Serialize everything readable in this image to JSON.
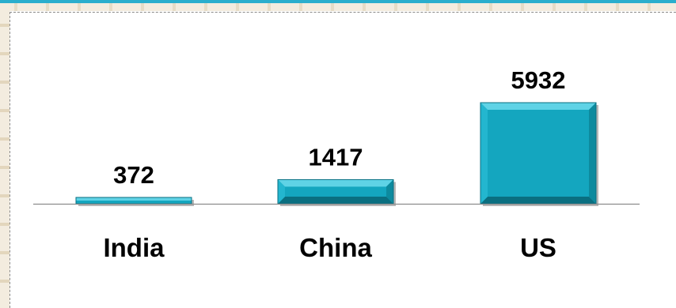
{
  "chart_data": {
    "type": "bar",
    "categories": [
      "India",
      "China",
      "US"
    ],
    "values": [
      372,
      1417,
      5932
    ],
    "title": "",
    "xlabel": "",
    "ylabel": "",
    "ylim": [
      0,
      5932
    ],
    "grid": false,
    "legend": "none",
    "show_value_labels": true
  },
  "colors": {
    "bar_face": "#14a6bf",
    "bar_light": "#5fd3e6",
    "bar_dark": "#0a6f80",
    "axis": "#8c8c8c",
    "accent": "#2aaecd"
  }
}
